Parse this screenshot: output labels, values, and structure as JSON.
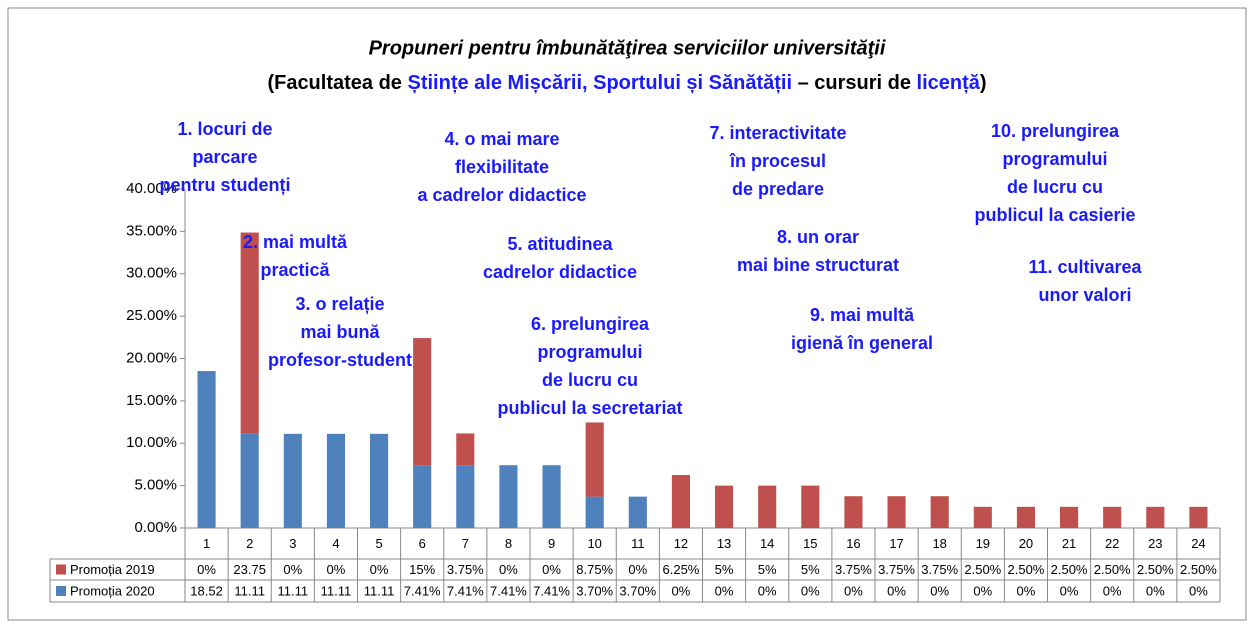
{
  "chart_data": {
    "type": "bar",
    "stacked": true,
    "title": "Propuneri pentru îmbunătăţirea  serviciilor universităţii",
    "subtitle": [
      "(Facultatea de ",
      "Științe ale Mișcării, Sportului și Sănătății",
      " – cursuri de ",
      "licență",
      ")"
    ],
    "categories": [
      "1",
      "2",
      "3",
      "4",
      "5",
      "6",
      "7",
      "8",
      "9",
      "10",
      "11",
      "12",
      "13",
      "14",
      "15",
      "16",
      "17",
      "18",
      "19",
      "20",
      "21",
      "22",
      "23",
      "24"
    ],
    "series": [
      {
        "name": "Promoția 2020",
        "color": "#4f81bd",
        "values": [
          18.52,
          11.11,
          11.11,
          11.11,
          11.11,
          7.41,
          7.41,
          7.41,
          7.41,
          3.7,
          3.7,
          0,
          0,
          0,
          0,
          0,
          0,
          0,
          0,
          0,
          0,
          0,
          0,
          0
        ],
        "value_labels": [
          "18.52",
          "11.11",
          "11.11",
          "11.11",
          "11.11",
          "7.41%",
          "7.41%",
          "7.41%",
          "7.41%",
          "3.70%",
          "3.70%",
          "0%",
          "0%",
          "0%",
          "0%",
          "0%",
          "0%",
          "0%",
          "0%",
          "0%",
          "0%",
          "0%",
          "0%",
          "0%"
        ]
      },
      {
        "name": "Promoția 2019",
        "color": "#c0504d",
        "values": [
          0,
          23.75,
          0,
          0,
          0,
          15,
          3.75,
          0,
          0,
          8.75,
          0,
          6.25,
          5,
          5,
          5,
          3.75,
          3.75,
          3.75,
          2.5,
          2.5,
          2.5,
          2.5,
          2.5,
          2.5
        ],
        "value_labels": [
          "0%",
          "23.75",
          "0%",
          "0%",
          "0%",
          "15%",
          "3.75%",
          "0%",
          "0%",
          "8.75%",
          "0%",
          "6.25%",
          "5%",
          "5%",
          "5%",
          "3.75%",
          "3.75%",
          "3.75%",
          "2.50%",
          "2.50%",
          "2.50%",
          "2.50%",
          "2.50%",
          "2.50%"
        ]
      }
    ],
    "ylim": [
      0,
      40
    ],
    "yticks": [
      {
        "value": 0,
        "label": "0.00%"
      },
      {
        "value": 5,
        "label": "5.00%"
      },
      {
        "value": 10,
        "label": "10.00%"
      },
      {
        "value": 15,
        "label": "15.00%"
      },
      {
        "value": 20,
        "label": "20.00%"
      },
      {
        "value": 25,
        "label": "25.00%"
      },
      {
        "value": 30,
        "label": "30.00%"
      },
      {
        "value": 35,
        "label": "35.00%"
      },
      {
        "value": 40,
        "label": "40.00%"
      }
    ],
    "annotations": [
      [
        "1. locuri de",
        "parcare",
        "pentru studenți"
      ],
      [
        "2. mai multă",
        "practică"
      ],
      [
        "3. o relație",
        "mai bună",
        "profesor-student"
      ],
      [
        "4. o mai mare",
        "flexibilitate",
        "a cadrelor didactice"
      ],
      [
        "5. atitudinea",
        "cadrelor didactice"
      ],
      [
        "6. prelungirea",
        "programului",
        "de lucru cu",
        "publicul la secretariat"
      ],
      [
        "7. interactivitate",
        "în procesul",
        "de predare"
      ],
      [
        "8. un orar",
        "mai bine structurat"
      ],
      [
        "9. mai multă",
        "igienă în general"
      ],
      [
        "10. prelungirea",
        "programului",
        "de lucru cu",
        "publicul la casierie"
      ],
      [
        "11. cultivarea",
        "unor valori"
      ]
    ]
  }
}
